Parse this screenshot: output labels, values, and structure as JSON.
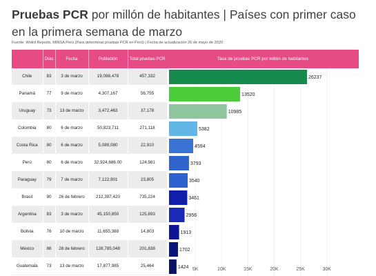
{
  "title": {
    "bold": "Pruebas PCR",
    "rest1": " por millón de habitantes ",
    "separator": "|",
    "rest2": " Países con primer caso en la primera semana de marzo"
  },
  "source": "Fuente: Wolrd Reports. MINSA Perú (Para determinar pruebas PCR en Perú)  | Fecha de actualización 26 de mayo de 2020",
  "table": {
    "headers": [
      "",
      "Días",
      "Fecha",
      "Población",
      "Total pruebas PCR"
    ],
    "rows": [
      {
        "country": "Chile",
        "days": "83",
        "date": "3 de marzo",
        "population": "19,098,478",
        "tests": "457,332"
      },
      {
        "country": "Panamá",
        "days": "77",
        "date": "9 de marzo",
        "population": "4,307,167",
        "tests": "56,755"
      },
      {
        "country": "Uruguay",
        "days": "73",
        "date": "13 de marzo",
        "population": "3,472,463",
        "tests": "37,178"
      },
      {
        "country": "Colombia",
        "days": "80",
        "date": "6 de marzo",
        "population": "50,823,711",
        "tests": "271,118"
      },
      {
        "country": "Costa Rica",
        "days": "80",
        "date": "6 de marzo",
        "population": "5,089,080",
        "tests": "22,910"
      },
      {
        "country": "Perú",
        "days": "80",
        "date": "6 de marzo",
        "population": "32,924,686.00",
        "tests": "124,981"
      },
      {
        "country": "Paraguay",
        "days": "79",
        "date": "7 de marzo",
        "population": "7,122,901",
        "tests": "23,805"
      },
      {
        "country": "Brasil",
        "days": "90",
        "date": "26 de febrero",
        "population": "212,397,420",
        "tests": "735,224"
      },
      {
        "country": "Argentina",
        "days": "83",
        "date": "3 de marzo",
        "population": "45,150,850",
        "tests": "125,893"
      },
      {
        "country": "Bolivia",
        "days": "76",
        "date": "10 de marzo",
        "population": "11,655,388",
        "tests": "14,803"
      },
      {
        "country": "México",
        "days": "88",
        "date": "28 de febrero",
        "population": "128,785,048",
        "tests": "201,838"
      },
      {
        "country": "Guatemala",
        "days": "73",
        "date": "13 de marzo",
        "population": "17,877,985",
        "tests": "25,464"
      }
    ]
  },
  "chart_data": {
    "type": "bar",
    "orientation": "horizontal",
    "title": "Tasa de pruebas PCR por millón de habitantes",
    "categories": [
      "Chile",
      "Panamá",
      "Uruguay",
      "Colombia",
      "Costa Rica",
      "Perú",
      "Paraguay",
      "Brasil",
      "Argentina",
      "Bolivia",
      "México",
      "Guatemala"
    ],
    "values": [
      26237,
      13520,
      10985,
      5382,
      4594,
      3793,
      3540,
      3461,
      2956,
      1913,
      1702,
      1424
    ],
    "value_labels": [
      "26237",
      "13520",
      "10985",
      "5382",
      "4594",
      "3793",
      "3540",
      "3461",
      "2956",
      "1913",
      "1702",
      "1424"
    ],
    "colors": [
      "#178a4d",
      "#4ccb3b",
      "#8fc6a0",
      "#62b6e6",
      "#3a73d3",
      "#2f64cd",
      "#2e62cf",
      "#101ea8",
      "#1a2ab8",
      "#0b1595",
      "#0a147e",
      "#0a1264"
    ],
    "xlim": [
      0,
      30000
    ],
    "ticks": [
      5000,
      10000,
      15000,
      20000,
      25000,
      30000
    ],
    "tick_labels": [
      "5K",
      "10K",
      "15K",
      "20K",
      "25K",
      "30K"
    ],
    "grid": true
  }
}
